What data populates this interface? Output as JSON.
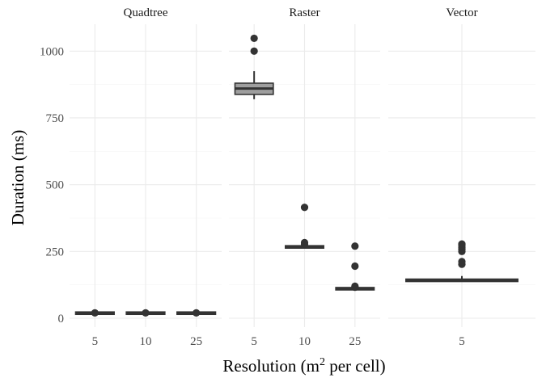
{
  "chart_data": {
    "type": "boxplot",
    "facets": [
      "Quadtree",
      "Raster",
      "Vector"
    ],
    "xlabel_main": "Resolution (m",
    "xlabel_sup": "2",
    "xlabel_tail": " per cell)",
    "ylabel": "Duration (ms)",
    "ylim": [
      -30,
      1090
    ],
    "yticks": [
      0,
      250,
      500,
      750,
      1000
    ],
    "ytick_labels": [
      "0",
      "250",
      "500",
      "750",
      "1000"
    ],
    "grid": true,
    "box_fill": "#9e9e9e",
    "line_color": "#333333",
    "panels": [
      {
        "facet": "Quadtree",
        "categories": [
          "5",
          "10",
          "25"
        ],
        "boxes": [
          {
            "category": "5",
            "lower_whisker": 17,
            "q1": 18,
            "median": 19,
            "q3": 20,
            "upper_whisker": 21,
            "outliers": [
              20
            ]
          },
          {
            "category": "10",
            "lower_whisker": 17,
            "q1": 18,
            "median": 19,
            "q3": 20,
            "upper_whisker": 21,
            "outliers": [
              20
            ]
          },
          {
            "category": "25",
            "lower_whisker": 17,
            "q1": 18,
            "median": 19,
            "q3": 20,
            "upper_whisker": 21,
            "outliers": [
              20
            ]
          }
        ]
      },
      {
        "facet": "Raster",
        "categories": [
          "5",
          "10",
          "25"
        ],
        "boxes": [
          {
            "category": "5",
            "lower_whisker": 820,
            "q1": 838,
            "median": 860,
            "q3": 880,
            "upper_whisker": 925,
            "outliers": [
              1000,
              1048
            ]
          },
          {
            "category": "10",
            "lower_whisker": 263,
            "q1": 265,
            "median": 267,
            "q3": 269,
            "upper_whisker": 272,
            "outliers": [
              277,
              283,
              415
            ]
          },
          {
            "category": "25",
            "lower_whisker": 107,
            "q1": 109,
            "median": 110,
            "q3": 112,
            "upper_whisker": 115,
            "outliers": [
              116,
              120,
              195,
              270
            ]
          }
        ]
      },
      {
        "facet": "Vector",
        "categories": [
          "5"
        ],
        "boxes": [
          {
            "category": "5",
            "lower_whisker": 137,
            "q1": 139,
            "median": 142,
            "q3": 145,
            "upper_whisker": 158,
            "outliers": [
              202,
              212,
              250,
              258,
              265,
              272,
              278
            ]
          }
        ]
      }
    ]
  }
}
